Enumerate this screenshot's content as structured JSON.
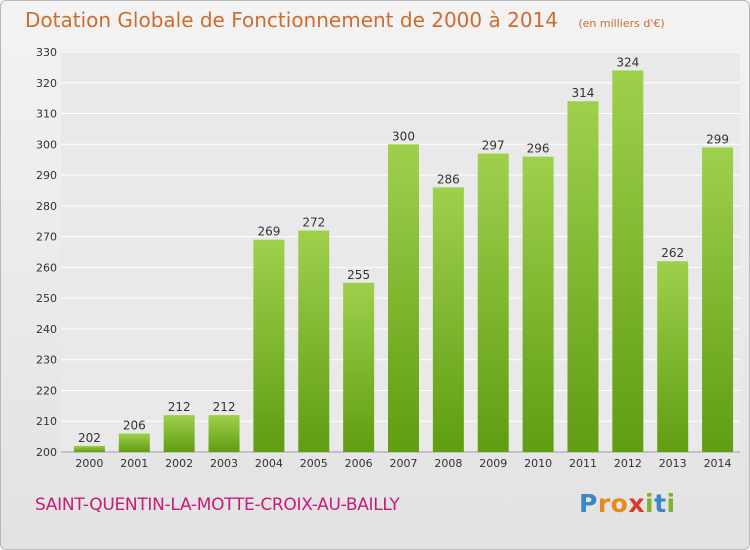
{
  "colors": {
    "title": "#cc6d2e",
    "commune": "#c41c78",
    "bar_light": "#9fd04c",
    "bar_dark": "#5f9d12",
    "grid": "#ffffff",
    "axis_text": "#333333"
  },
  "chart_data": {
    "type": "bar",
    "title": "Dotation Globale de Fonctionnement de 2000 à 2014",
    "subtitle": "(en milliers d'€)",
    "xlabel": "",
    "ylabel": "",
    "categories": [
      "2000",
      "2001",
      "2002",
      "2003",
      "2004",
      "2005",
      "2006",
      "2007",
      "2008",
      "2009",
      "2010",
      "2011",
      "2012",
      "2013",
      "2014"
    ],
    "values": [
      202,
      206,
      212,
      212,
      269,
      272,
      255,
      300,
      286,
      297,
      296,
      314,
      324,
      262,
      299
    ],
    "ylim": [
      200,
      330
    ],
    "yticks": [
      200,
      210,
      220,
      230,
      240,
      250,
      260,
      270,
      280,
      290,
      300,
      310,
      320,
      330
    ],
    "grid": true,
    "legend": "none"
  },
  "commune": "SAINT-QUENTIN-LA-MOTTE-CROIX-AU-BAILLY",
  "logo": {
    "text": "Proxiti",
    "letters": [
      {
        "ch": "P",
        "color": "#3a86c8"
      },
      {
        "ch": "r",
        "color": "#e58a1f"
      },
      {
        "ch": "o",
        "color": "#e58a1f"
      },
      {
        "ch": "x",
        "color": "#d93a2b"
      },
      {
        "ch": "i",
        "color": "#7ab52a"
      },
      {
        "ch": "t",
        "color": "#3a86c8"
      },
      {
        "ch": "i",
        "color": "#7ab52a"
      }
    ]
  }
}
